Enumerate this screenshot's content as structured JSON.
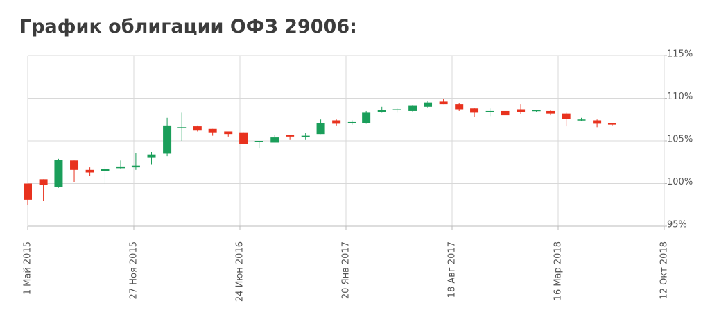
{
  "chart_data": {
    "type": "candlestick",
    "title": "График облигации ОФЗ 29006:",
    "x": [
      "2015-05",
      "2015-06",
      "2015-07",
      "2015-08",
      "2015-09",
      "2015-10",
      "2015-11",
      "2015-12",
      "2016-01",
      "2016-02",
      "2016-03",
      "2016-04",
      "2016-05",
      "2016-06",
      "2016-07",
      "2016-08",
      "2016-09",
      "2016-10",
      "2016-11",
      "2016-12",
      "2017-01",
      "2017-02",
      "2017-03",
      "2017-04",
      "2017-05",
      "2017-06",
      "2017-07",
      "2017-08",
      "2017-09",
      "2017-10",
      "2017-11",
      "2017-12",
      "2018-01",
      "2018-02",
      "2018-03",
      "2018-04",
      "2018-05",
      "2018-06",
      "2018-07"
    ],
    "open": [
      100.0,
      100.5,
      99.6,
      102.7,
      101.6,
      101.5,
      101.8,
      101.9,
      103.0,
      103.5,
      106.5,
      106.7,
      106.4,
      106.1,
      106.0,
      104.9,
      104.8,
      105.7,
      105.5,
      105.8,
      107.4,
      107.1,
      107.1,
      108.4,
      108.6,
      108.5,
      109.0,
      109.6,
      109.3,
      108.8,
      108.4,
      108.5,
      108.7,
      108.5,
      108.5,
      108.2,
      107.4,
      107.4,
      107.1
    ],
    "high": [
      100.0,
      100.5,
      102.9,
      102.7,
      101.9,
      102.1,
      102.7,
      103.6,
      103.7,
      107.7,
      108.3,
      106.8,
      106.4,
      106.1,
      106.0,
      105.0,
      105.7,
      105.7,
      105.9,
      107.5,
      107.5,
      107.4,
      108.5,
      109.0,
      108.9,
      109.2,
      109.7,
      109.9,
      109.4,
      108.9,
      108.8,
      108.8,
      109.3,
      108.6,
      108.6,
      108.3,
      107.7,
      107.5,
      107.1
    ],
    "low": [
      97.5,
      98.0,
      99.5,
      100.2,
      100.9,
      100.0,
      101.7,
      101.6,
      102.2,
      103.2,
      105.0,
      106.1,
      105.6,
      105.5,
      104.6,
      104.1,
      104.8,
      105.1,
      105.1,
      105.8,
      106.8,
      106.9,
      107.0,
      108.3,
      108.3,
      108.4,
      108.9,
      109.3,
      108.5,
      107.8,
      107.9,
      107.9,
      108.1,
      108.4,
      108.0,
      106.7,
      107.3,
      106.6,
      106.8
    ],
    "close": [
      98.1,
      99.8,
      102.8,
      101.6,
      101.3,
      101.7,
      102.0,
      102.1,
      103.4,
      106.8,
      106.6,
      106.2,
      106.0,
      105.8,
      104.6,
      105.0,
      105.4,
      105.5,
      105.6,
      107.1,
      107.0,
      107.2,
      108.3,
      108.6,
      108.7,
      109.1,
      109.5,
      109.3,
      108.7,
      108.3,
      108.5,
      108.0,
      108.4,
      108.6,
      108.2,
      107.6,
      107.5,
      107.0,
      106.9
    ],
    "up_color": "#1a9e5a",
    "down_color": "#e8321e",
    "xlim": [
      "2015-05-01",
      "2018-10-12"
    ],
    "xticks": [
      {
        "value": "2015-05-01",
        "label": "1 Май 2015"
      },
      {
        "value": "2015-11-27",
        "label": "27 Ноя 2015"
      },
      {
        "value": "2016-06-24",
        "label": "24 Июн 2016"
      },
      {
        "value": "2017-01-20",
        "label": "20 Янв 2017"
      },
      {
        "value": "2017-08-18",
        "label": "18 Авг 2017"
      },
      {
        "value": "2018-03-16",
        "label": "16 Мар 2018"
      },
      {
        "value": "2018-10-12",
        "label": "12 Окт 2018"
      }
    ],
    "ylim": [
      95,
      115
    ],
    "yticks": [
      {
        "value": 95,
        "label": "95%"
      },
      {
        "value": 100,
        "label": "100%"
      },
      {
        "value": 105,
        "label": "105%"
      },
      {
        "value": 110,
        "label": "110%"
      },
      {
        "value": 115,
        "label": "115%"
      }
    ],
    "grid": true
  }
}
